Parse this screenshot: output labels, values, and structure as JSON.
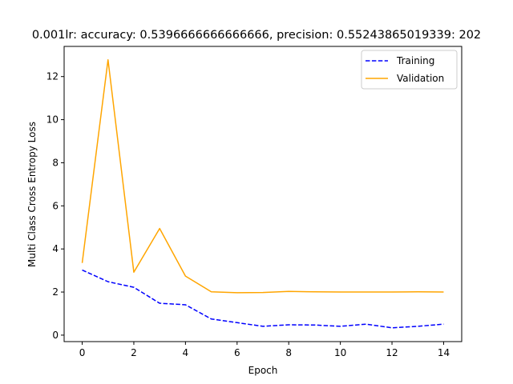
{
  "chart_data": {
    "type": "line",
    "title": "0.001lr: accuracy: 0.5396666666666666, precision: 0.55243865019339: 202",
    "xlabel": "Epoch",
    "ylabel": "Multi Class Cross Entropy Loss",
    "xlim": [
      -0.7,
      14.7
    ],
    "ylim": [
      -0.3,
      13.4
    ],
    "xticks": [
      0,
      2,
      4,
      6,
      8,
      10,
      12,
      14
    ],
    "yticks": [
      0,
      2,
      4,
      6,
      8,
      10,
      12
    ],
    "grid": false,
    "legend_position": "top-right",
    "x": [
      0,
      1,
      2,
      3,
      4,
      5,
      6,
      7,
      8,
      9,
      10,
      11,
      12,
      13,
      14
    ],
    "series": [
      {
        "name": "Training",
        "color": "#0000ff",
        "style": "dashed",
        "values": [
          3.02,
          2.48,
          2.22,
          1.48,
          1.41,
          0.75,
          0.58,
          0.41,
          0.48,
          0.47,
          0.41,
          0.51,
          0.34,
          0.41,
          0.51
        ]
      },
      {
        "name": "Validation",
        "color": "#ffa500",
        "style": "solid",
        "values": [
          3.35,
          12.78,
          2.92,
          4.95,
          2.74,
          2.01,
          1.97,
          1.98,
          2.03,
          2.01,
          2.0,
          2.0,
          2.0,
          2.01,
          2.0
        ]
      }
    ]
  }
}
